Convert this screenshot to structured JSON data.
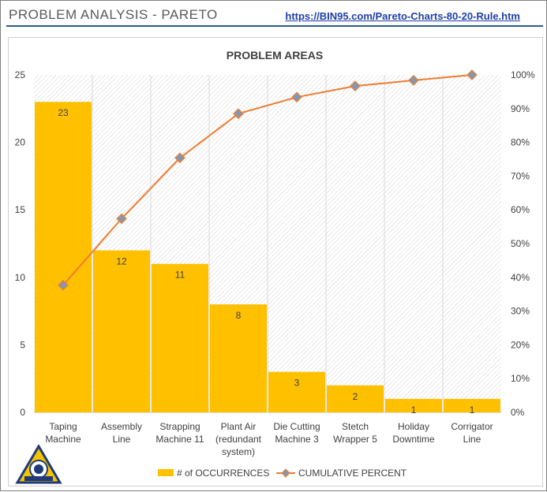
{
  "header": {
    "title": "PROBLEM ANALYSIS - PARETO",
    "link": "https://BIN95.com/Pareto-Charts-80-20-Rule.htm"
  },
  "logo": {
    "ring_text": "BIN95.COM NETWORK",
    "caption": "INDUSTRIAL TRAINING"
  },
  "chart_data": {
    "type": "bar",
    "title": "PROBLEM AREAS",
    "categories": [
      [
        "Taping",
        "Machine"
      ],
      [
        "Assembly",
        "Line"
      ],
      [
        "Strapping",
        "Machine 11"
      ],
      [
        "Plant Air",
        "(redundant",
        "system)"
      ],
      [
        "Die Cutting",
        "Machine 3"
      ],
      [
        "Stetch",
        "Wrapper 5"
      ],
      [
        "Holiday",
        "Downtime"
      ],
      [
        "Corrigator",
        "Line"
      ]
    ],
    "series": [
      {
        "name": "# of OCCURRENCES",
        "type": "bar",
        "axis": "left",
        "values": [
          23,
          12,
          11,
          8,
          3,
          2,
          1,
          1
        ],
        "color": "#ffc000"
      },
      {
        "name": "CUMULATIVE PERCENT",
        "type": "line",
        "axis": "right",
        "values": [
          37.7,
          57.4,
          75.4,
          88.5,
          93.4,
          96.7,
          98.4,
          100
        ],
        "color": "#ed7d31",
        "marker_color": "#8497b0"
      }
    ],
    "ylim": [
      0,
      25
    ],
    "yticks": [
      "0",
      "5",
      "10",
      "15",
      "20",
      "25"
    ],
    "y2lim": [
      0,
      100
    ],
    "y2ticks": [
      "0%",
      "10%",
      "20%",
      "30%",
      "40%",
      "50%",
      "60%",
      "70%",
      "80%",
      "90%",
      "100%"
    ],
    "legend_position": "bottom",
    "plot_background": "diagonal hatch"
  }
}
